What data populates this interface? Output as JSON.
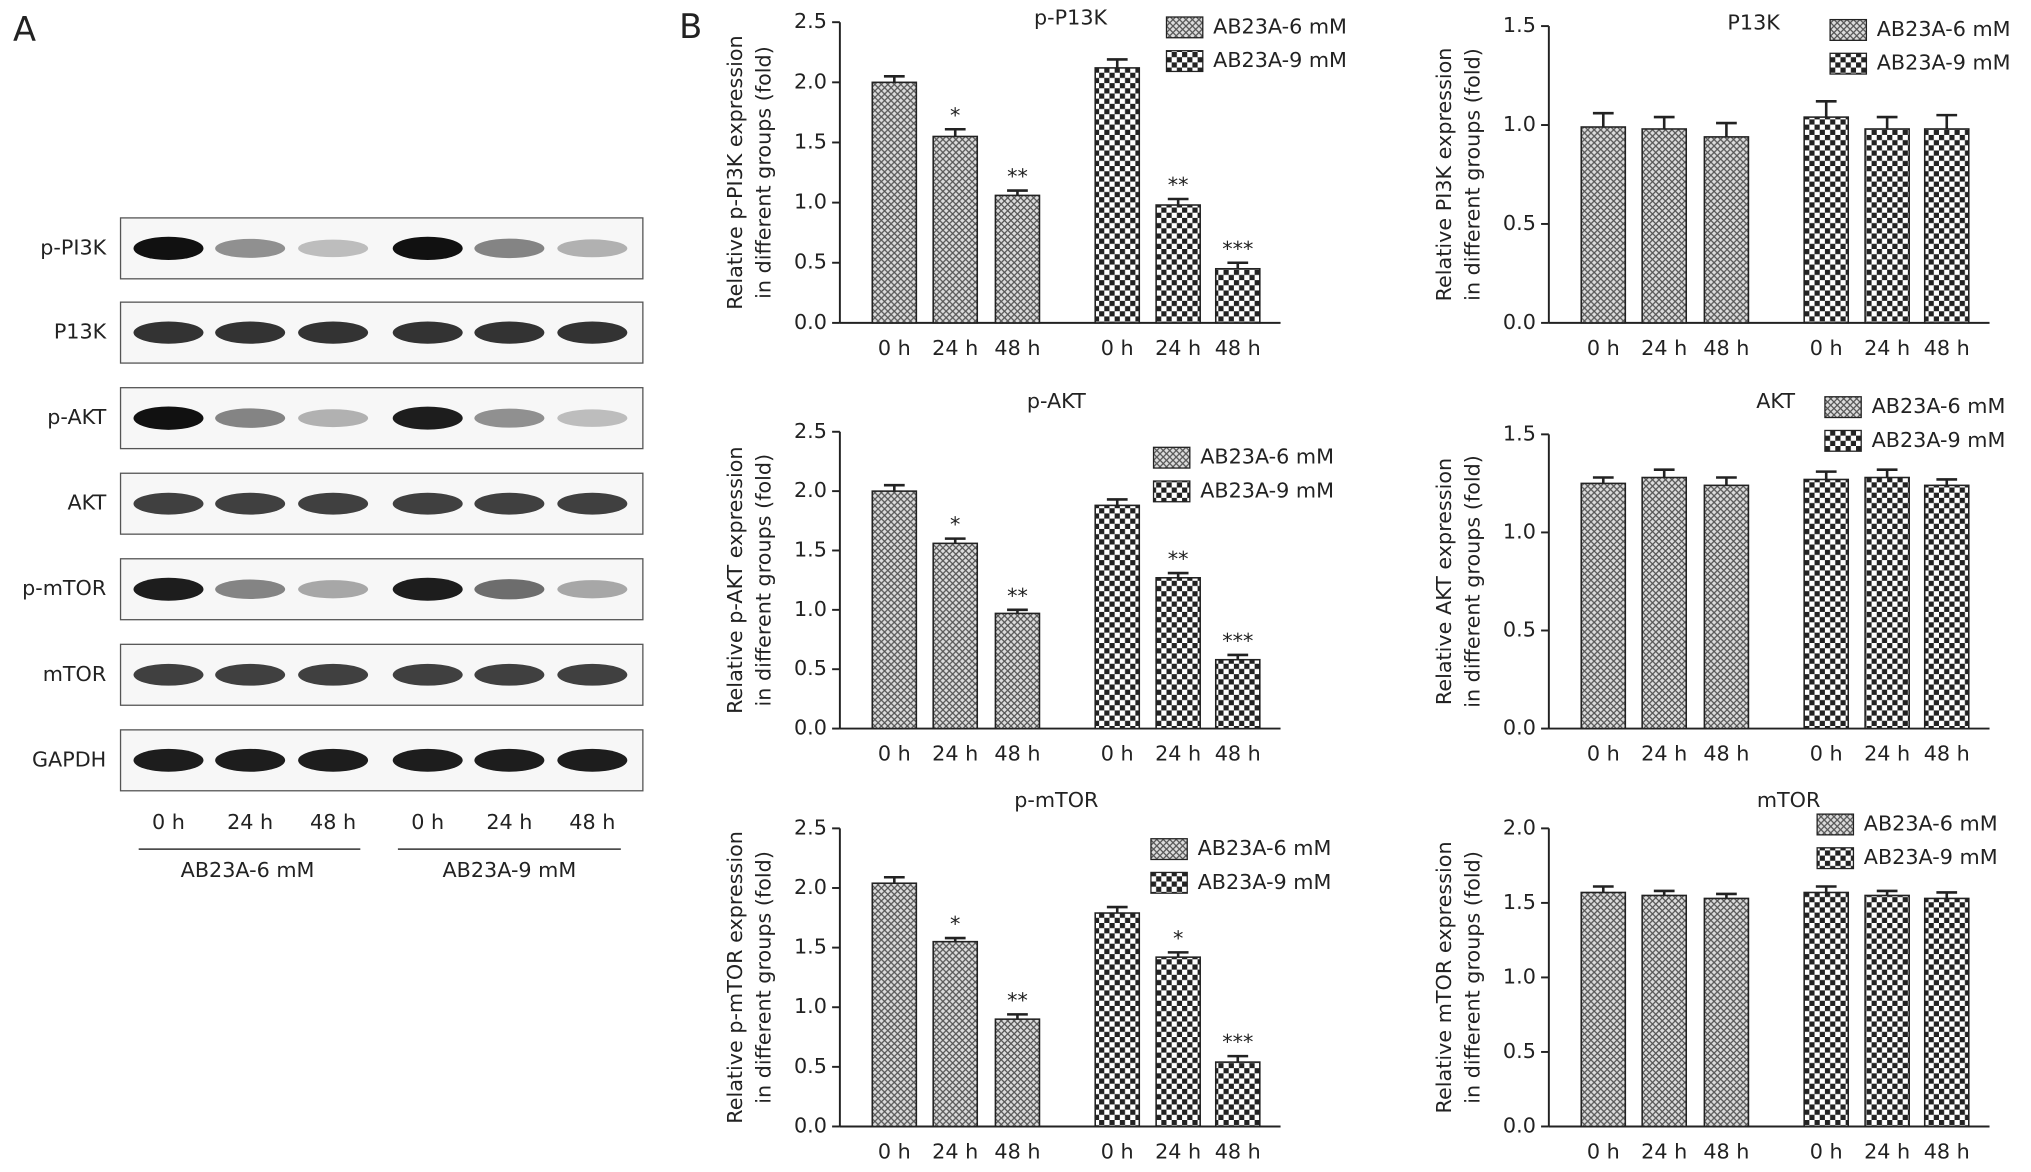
{
  "panel_labels": [
    "A",
    "B"
  ],
  "blot": {
    "rows": [
      "p-PI3K",
      "P13K",
      "p-AKT",
      "AKT",
      "p-mTOR",
      "mTOR",
      "GAPDH"
    ],
    "lanes": [
      "0 h",
      "24 h",
      "48 h",
      "0 h",
      "24 h",
      "48 h"
    ],
    "groups": [
      "AB23A-6 mM",
      "AB23A-9 mM"
    ]
  },
  "chart_data": [
    {
      "type": "bar",
      "title": "p-P13K",
      "ylabel": [
        "Relative p-PI3K expression",
        "in different groups (fold)"
      ],
      "categories": [
        "0 h",
        "24 h",
        "48 h"
      ],
      "ylim": [
        0,
        2.5
      ],
      "yticks": [
        {
          "value": 0,
          "label": "0.0"
        },
        0.5,
        {
          "value": 1,
          "label": "1.0"
        },
        1.5,
        {
          "value": 2,
          "label": "2.0"
        },
        2.5
      ],
      "series": [
        {
          "name": "AB23A-6 mM",
          "color": "#555555",
          "pattern": "crosshatch",
          "values": [
            2.0,
            1.55,
            1.06
          ],
          "errors": [
            0.05,
            0.06,
            0.04
          ],
          "annotations": [
            null,
            "*",
            "**"
          ]
        },
        {
          "name": "AB23A-9 mM",
          "color": "#222222",
          "pattern": "checker",
          "values": [
            2.12,
            0.98,
            0.45
          ],
          "errors": [
            0.07,
            0.05,
            0.05
          ],
          "annotations": [
            null,
            "**",
            "***"
          ]
        }
      ]
    },
    {
      "type": "bar",
      "title": "P13K",
      "ylabel": [
        "Relative PI3K expression",
        "in different groups (fold)"
      ],
      "categories": [
        "0 h",
        "24 h",
        "48 h"
      ],
      "ylim": [
        0,
        1.5
      ],
      "yticks": [
        {
          "value": 0,
          "label": "0.0"
        },
        0.5,
        {
          "value": 1,
          "label": "1.0"
        },
        1.5
      ],
      "series": [
        {
          "name": "AB23A-6 mM",
          "color": "#555555",
          "pattern": "crosshatch",
          "values": [
            0.99,
            0.98,
            0.94
          ],
          "errors": [
            0.07,
            0.06,
            0.07
          ]
        },
        {
          "name": "AB23A-9 mM",
          "color": "#222222",
          "pattern": "checker",
          "values": [
            1.04,
            0.98,
            0.98
          ],
          "errors": [
            0.08,
            0.06,
            0.07
          ]
        }
      ]
    },
    {
      "type": "bar",
      "title": "p-AKT",
      "ylabel": [
        "Relative p-AKT expression",
        "in different groups (fold)"
      ],
      "categories": [
        "0 h",
        "24 h",
        "48 h"
      ],
      "ylim": [
        0,
        2.5
      ],
      "yticks": [
        {
          "value": 0,
          "label": "0.0"
        },
        0.5,
        {
          "value": 1,
          "label": "1.0"
        },
        1.5,
        {
          "value": 2,
          "label": "2.0"
        },
        2.5
      ],
      "series": [
        {
          "name": "AB23A-6 mM",
          "color": "#555555",
          "pattern": "crosshatch",
          "values": [
            2.0,
            1.56,
            0.97
          ],
          "errors": [
            0.05,
            0.04,
            0.03
          ],
          "annotations": [
            null,
            "*",
            "**"
          ]
        },
        {
          "name": "AB23A-9 mM",
          "color": "#222222",
          "pattern": "checker",
          "values": [
            1.88,
            1.27,
            0.58
          ],
          "errors": [
            0.05,
            0.04,
            0.04
          ],
          "annotations": [
            null,
            "**",
            "***"
          ]
        }
      ]
    },
    {
      "type": "bar",
      "title": "AKT",
      "ylabel": [
        "Relative AKT expression",
        "in different groups (fold)"
      ],
      "categories": [
        "0 h",
        "24 h",
        "48 h"
      ],
      "ylim": [
        0,
        1.5
      ],
      "yticks": [
        {
          "value": 0,
          "label": "0.0"
        },
        0.5,
        {
          "value": 1,
          "label": "1.0"
        },
        1.5
      ],
      "series": [
        {
          "name": "AB23A-6 mM",
          "color": "#555555",
          "pattern": "crosshatch",
          "values": [
            1.25,
            1.28,
            1.24
          ],
          "errors": [
            0.03,
            0.04,
            0.04
          ]
        },
        {
          "name": "AB23A-9 mM",
          "color": "#222222",
          "pattern": "checker",
          "values": [
            1.27,
            1.28,
            1.24
          ],
          "errors": [
            0.04,
            0.04,
            0.03
          ]
        }
      ]
    },
    {
      "type": "bar",
      "title": "p-mTOR",
      "ylabel": [
        "Relative p-mTOR expression",
        "in different groups (fold)"
      ],
      "categories": [
        "0 h",
        "24 h",
        "48 h"
      ],
      "ylim": [
        0,
        2.5
      ],
      "yticks": [
        {
          "value": 0,
          "label": "0.0"
        },
        0.5,
        {
          "value": 1,
          "label": "1.0"
        },
        1.5,
        {
          "value": 2,
          "label": "2.0"
        },
        2.5
      ],
      "series": [
        {
          "name": "AB23A-6 mM",
          "color": "#555555",
          "pattern": "crosshatch",
          "values": [
            2.04,
            1.55,
            0.9
          ],
          "errors": [
            0.05,
            0.03,
            0.04
          ],
          "annotations": [
            null,
            "*",
            "**"
          ]
        },
        {
          "name": "AB23A-9 mM",
          "color": "#222222",
          "pattern": "checker",
          "values": [
            1.79,
            1.42,
            0.54
          ],
          "errors": [
            0.05,
            0.04,
            0.05
          ],
          "annotations": [
            null,
            "*",
            "***"
          ]
        }
      ]
    },
    {
      "type": "bar",
      "title": "mTOR",
      "ylabel": [
        "Relative mTOR expression",
        "in different groups (fold)"
      ],
      "categories": [
        "0 h",
        "24 h",
        "48 h"
      ],
      "ylim": [
        0,
        2
      ],
      "yticks": [
        {
          "value": 0,
          "label": "0.0"
        },
        0.5,
        {
          "value": 1,
          "label": "1.0"
        },
        1.5,
        {
          "value": 2,
          "label": "2.0"
        }
      ],
      "series": [
        {
          "name": "AB23A-6 mM",
          "color": "#555555",
          "pattern": "crosshatch",
          "values": [
            1.57,
            1.55,
            1.53
          ],
          "errors": [
            0.04,
            0.03,
            0.03
          ]
        },
        {
          "name": "AB23A-9 mM",
          "color": "#222222",
          "pattern": "checker",
          "values": [
            1.57,
            1.55,
            1.53
          ],
          "errors": [
            0.04,
            0.03,
            0.04
          ]
        }
      ]
    }
  ]
}
